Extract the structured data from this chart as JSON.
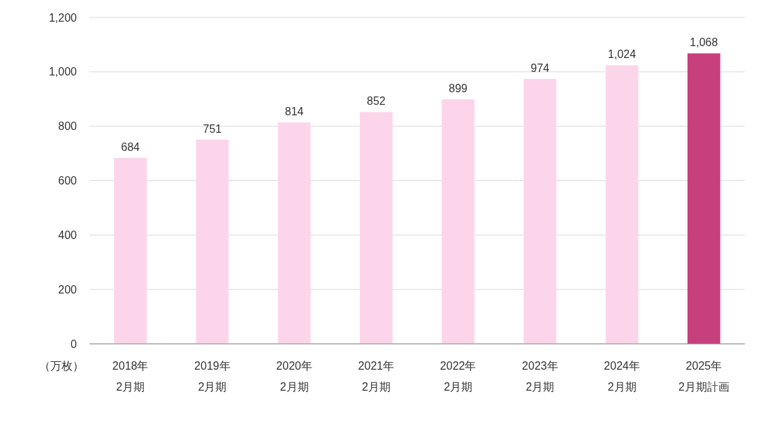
{
  "chart_data": {
    "type": "bar",
    "ylabel": "（万枚）",
    "categories": [
      "2018年\n2月期",
      "2019年\n2月期",
      "2020年\n2月期",
      "2021年\n2月期",
      "2022年\n2月期",
      "2023年\n2月期",
      "2024年\n2月期",
      "2025年\n2月期計画"
    ],
    "values": [
      684,
      751,
      814,
      852,
      899,
      974,
      1024,
      1068
    ],
    "colors": [
      "#fdd5eb",
      "#fdd5eb",
      "#fdd5eb",
      "#fdd5eb",
      "#fdd5eb",
      "#fdd5eb",
      "#fdd5eb",
      "#c83f7e"
    ],
    "value_labels": [
      "684",
      "751",
      "814",
      "852",
      "899",
      "974",
      "1,024",
      "1,068"
    ],
    "ylim": [
      0,
      1200
    ],
    "yticks": [
      0,
      200,
      400,
      600,
      800,
      {
        "value": 1000,
        "label": "1,000"
      },
      {
        "value": 1200,
        "label": "1,200"
      }
    ],
    "grid": "y"
  }
}
